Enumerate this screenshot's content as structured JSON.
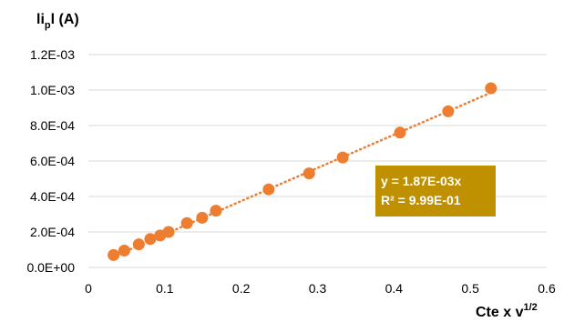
{
  "chart_data": {
    "type": "scatter",
    "ylabel": {
      "prefix": "li",
      "sub": "p",
      "suffix": "l (A)"
    },
    "xlabel": {
      "text": "Cte x v",
      "sup": "1/2"
    },
    "xlim": [
      0,
      0.6
    ],
    "ylim": [
      0,
      0.0012
    ],
    "x_ticks": [
      0,
      0.1,
      0.2,
      0.3,
      0.4,
      0.5,
      0.6
    ],
    "x_tick_labels": [
      "0",
      "0.1",
      "0.2",
      "0.3",
      "0.4",
      "0.5",
      "0.6"
    ],
    "y_ticks": [
      0,
      0.0002,
      0.0004,
      0.0006,
      0.0008,
      0.001,
      0.0012
    ],
    "y_tick_labels": [
      "0.0E+00",
      "2.0E-04",
      "4.0E-04",
      "6.0E-04",
      "8.0E-04",
      "1.0E-03",
      "1.2E-03"
    ],
    "grid": "horizontal",
    "legend": "none",
    "series": [
      {
        "x": [
          0.033,
          0.047,
          0.066,
          0.081,
          0.094,
          0.105,
          0.129,
          0.149,
          0.167,
          0.236,
          0.289,
          0.333,
          0.408,
          0.471,
          0.527
        ],
        "y": [
          7e-05,
          9.5e-05,
          0.00013,
          0.00016,
          0.00018,
          0.0002,
          0.00025,
          0.00028,
          0.00032,
          0.00044,
          0.00053,
          0.00062,
          0.00076,
          0.00088,
          0.00101
        ],
        "color": "#ED7D31"
      }
    ],
    "trendline": {
      "type": "linear",
      "slope": 0.00187,
      "style": "dotted",
      "color": "#ED7D31",
      "x_range": [
        0.033,
        0.527
      ]
    },
    "annotation": {
      "lines": [
        "y = 1.87E-03x",
        "R² = 9.99E-01"
      ],
      "background": "#BF9000",
      "text_color": "#FFFFFF"
    },
    "gridline_color": "#D9D9D9"
  }
}
